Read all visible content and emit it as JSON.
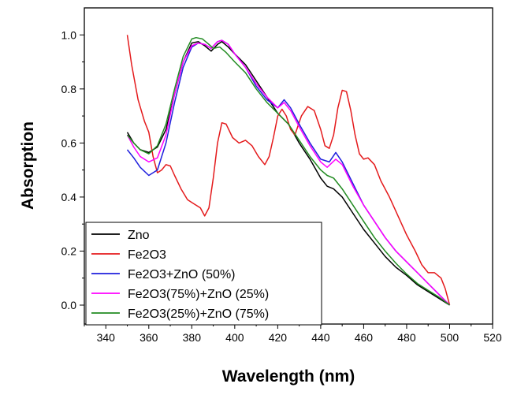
{
  "chart_data": {
    "type": "line",
    "title": "",
    "xlabel": "Wavelength (nm)",
    "ylabel": "Absorption",
    "xlim": [
      330,
      520
    ],
    "ylim": [
      -0.07,
      1.1
    ],
    "x_ticks": [
      340,
      360,
      380,
      400,
      420,
      440,
      460,
      480,
      500,
      520
    ],
    "y_ticks": [
      0.0,
      0.2,
      0.4,
      0.6,
      0.8,
      1.0
    ],
    "x_tick_labels": [
      "340",
      "360",
      "380",
      "400",
      "420",
      "440",
      "460",
      "480",
      "500",
      "520"
    ],
    "y_tick_labels": [
      "0.0",
      "0.2",
      "0.4",
      "0.6",
      "0.8",
      "1.0"
    ],
    "grid": false,
    "legend_position": "bottom-left",
    "series": [
      {
        "name": "Zno",
        "color": "#000000",
        "points": [
          [
            350,
            0.64
          ],
          [
            353,
            0.6
          ],
          [
            356,
            0.575
          ],
          [
            360,
            0.565
          ],
          [
            364,
            0.585
          ],
          [
            368,
            0.65
          ],
          [
            372,
            0.78
          ],
          [
            376,
            0.9
          ],
          [
            380,
            0.97
          ],
          [
            383,
            0.975
          ],
          [
            386,
            0.96
          ],
          [
            389,
            0.94
          ],
          [
            392,
            0.965
          ],
          [
            394,
            0.975
          ],
          [
            397,
            0.955
          ],
          [
            400,
            0.93
          ],
          [
            405,
            0.89
          ],
          [
            410,
            0.83
          ],
          [
            415,
            0.77
          ],
          [
            420,
            0.71
          ],
          [
            425,
            0.67
          ],
          [
            430,
            0.6
          ],
          [
            435,
            0.54
          ],
          [
            440,
            0.47
          ],
          [
            443,
            0.44
          ],
          [
            446,
            0.43
          ],
          [
            450,
            0.4
          ],
          [
            455,
            0.34
          ],
          [
            460,
            0.28
          ],
          [
            465,
            0.23
          ],
          [
            470,
            0.18
          ],
          [
            475,
            0.14
          ],
          [
            480,
            0.11
          ],
          [
            485,
            0.075
          ],
          [
            490,
            0.05
          ],
          [
            495,
            0.025
          ],
          [
            500,
            0.0
          ]
        ]
      },
      {
        "name": "Fe2O3",
        "color": "#e41a1c",
        "points": [
          [
            350,
            1.0
          ],
          [
            352,
            0.89
          ],
          [
            355,
            0.76
          ],
          [
            358,
            0.68
          ],
          [
            360,
            0.64
          ],
          [
            362,
            0.55
          ],
          [
            364,
            0.49
          ],
          [
            366,
            0.5
          ],
          [
            368,
            0.52
          ],
          [
            370,
            0.515
          ],
          [
            372,
            0.48
          ],
          [
            375,
            0.43
          ],
          [
            378,
            0.39
          ],
          [
            381,
            0.375
          ],
          [
            384,
            0.36
          ],
          [
            386,
            0.33
          ],
          [
            388,
            0.36
          ],
          [
            390,
            0.47
          ],
          [
            392,
            0.6
          ],
          [
            394,
            0.675
          ],
          [
            396,
            0.67
          ],
          [
            399,
            0.62
          ],
          [
            402,
            0.6
          ],
          [
            405,
            0.61
          ],
          [
            408,
            0.59
          ],
          [
            411,
            0.55
          ],
          [
            414,
            0.52
          ],
          [
            416,
            0.55
          ],
          [
            418,
            0.62
          ],
          [
            420,
            0.7
          ],
          [
            422,
            0.725
          ],
          [
            424,
            0.7
          ],
          [
            426,
            0.65
          ],
          [
            428,
            0.63
          ],
          [
            431,
            0.7
          ],
          [
            434,
            0.735
          ],
          [
            437,
            0.72
          ],
          [
            440,
            0.65
          ],
          [
            442,
            0.59
          ],
          [
            444,
            0.58
          ],
          [
            446,
            0.63
          ],
          [
            448,
            0.73
          ],
          [
            450,
            0.795
          ],
          [
            452,
            0.79
          ],
          [
            454,
            0.72
          ],
          [
            456,
            0.63
          ],
          [
            458,
            0.56
          ],
          [
            460,
            0.54
          ],
          [
            462,
            0.545
          ],
          [
            465,
            0.52
          ],
          [
            468,
            0.46
          ],
          [
            472,
            0.4
          ],
          [
            476,
            0.33
          ],
          [
            480,
            0.26
          ],
          [
            484,
            0.2
          ],
          [
            487,
            0.15
          ],
          [
            490,
            0.12
          ],
          [
            493,
            0.12
          ],
          [
            496,
            0.1
          ],
          [
            498,
            0.06
          ],
          [
            500,
            0.0
          ]
        ]
      },
      {
        "name": "Fe2O3+ZnO (50%)",
        "color": "#1f1fdd",
        "points": [
          [
            350,
            0.575
          ],
          [
            353,
            0.545
          ],
          [
            356,
            0.51
          ],
          [
            360,
            0.48
          ],
          [
            364,
            0.5
          ],
          [
            368,
            0.6
          ],
          [
            372,
            0.75
          ],
          [
            376,
            0.88
          ],
          [
            380,
            0.955
          ],
          [
            383,
            0.97
          ],
          [
            386,
            0.965
          ],
          [
            389,
            0.95
          ],
          [
            392,
            0.975
          ],
          [
            394,
            0.98
          ],
          [
            397,
            0.965
          ],
          [
            400,
            0.93
          ],
          [
            405,
            0.88
          ],
          [
            410,
            0.81
          ],
          [
            415,
            0.76
          ],
          [
            420,
            0.73
          ],
          [
            423,
            0.76
          ],
          [
            426,
            0.73
          ],
          [
            430,
            0.67
          ],
          [
            435,
            0.6
          ],
          [
            440,
            0.54
          ],
          [
            444,
            0.53
          ],
          [
            447,
            0.565
          ],
          [
            450,
            0.53
          ],
          [
            455,
            0.45
          ],
          [
            460,
            0.37
          ],
          [
            465,
            0.31
          ],
          [
            470,
            0.25
          ],
          [
            475,
            0.2
          ],
          [
            480,
            0.16
          ],
          [
            485,
            0.12
          ],
          [
            490,
            0.08
          ],
          [
            495,
            0.04
          ],
          [
            500,
            0.0
          ]
        ]
      },
      {
        "name": "Fe2O3(75%)+ZnO (25%)",
        "color": "#ff00ff",
        "points": [
          [
            350,
            0.63
          ],
          [
            353,
            0.585
          ],
          [
            356,
            0.55
          ],
          [
            360,
            0.53
          ],
          [
            364,
            0.545
          ],
          [
            368,
            0.63
          ],
          [
            372,
            0.78
          ],
          [
            376,
            0.9
          ],
          [
            380,
            0.96
          ],
          [
            383,
            0.97
          ],
          [
            386,
            0.965
          ],
          [
            389,
            0.95
          ],
          [
            392,
            0.975
          ],
          [
            394,
            0.98
          ],
          [
            397,
            0.965
          ],
          [
            400,
            0.93
          ],
          [
            405,
            0.88
          ],
          [
            410,
            0.82
          ],
          [
            415,
            0.77
          ],
          [
            420,
            0.73
          ],
          [
            423,
            0.75
          ],
          [
            426,
            0.72
          ],
          [
            430,
            0.66
          ],
          [
            435,
            0.59
          ],
          [
            440,
            0.53
          ],
          [
            443,
            0.51
          ],
          [
            447,
            0.54
          ],
          [
            450,
            0.52
          ],
          [
            455,
            0.44
          ],
          [
            460,
            0.37
          ],
          [
            465,
            0.31
          ],
          [
            470,
            0.25
          ],
          [
            475,
            0.2
          ],
          [
            480,
            0.16
          ],
          [
            485,
            0.12
          ],
          [
            490,
            0.08
          ],
          [
            495,
            0.04
          ],
          [
            500,
            0.0
          ]
        ]
      },
      {
        "name": "Fe2O3(25%)+ZnO (75%)",
        "color": "#228b22",
        "points": [
          [
            350,
            0.63
          ],
          [
            353,
            0.6
          ],
          [
            356,
            0.575
          ],
          [
            360,
            0.56
          ],
          [
            364,
            0.59
          ],
          [
            368,
            0.67
          ],
          [
            372,
            0.8
          ],
          [
            376,
            0.92
          ],
          [
            380,
            0.985
          ],
          [
            382,
            0.99
          ],
          [
            385,
            0.985
          ],
          [
            388,
            0.965
          ],
          [
            390,
            0.95
          ],
          [
            393,
            0.955
          ],
          [
            396,
            0.935
          ],
          [
            400,
            0.9
          ],
          [
            405,
            0.86
          ],
          [
            410,
            0.8
          ],
          [
            415,
            0.75
          ],
          [
            420,
            0.71
          ],
          [
            425,
            0.67
          ],
          [
            430,
            0.61
          ],
          [
            435,
            0.55
          ],
          [
            440,
            0.5
          ],
          [
            443,
            0.48
          ],
          [
            446,
            0.47
          ],
          [
            450,
            0.43
          ],
          [
            455,
            0.37
          ],
          [
            460,
            0.31
          ],
          [
            465,
            0.25
          ],
          [
            470,
            0.2
          ],
          [
            475,
            0.155
          ],
          [
            480,
            0.115
          ],
          [
            485,
            0.08
          ],
          [
            490,
            0.055
          ],
          [
            495,
            0.03
          ],
          [
            500,
            0.0
          ]
        ]
      }
    ]
  }
}
